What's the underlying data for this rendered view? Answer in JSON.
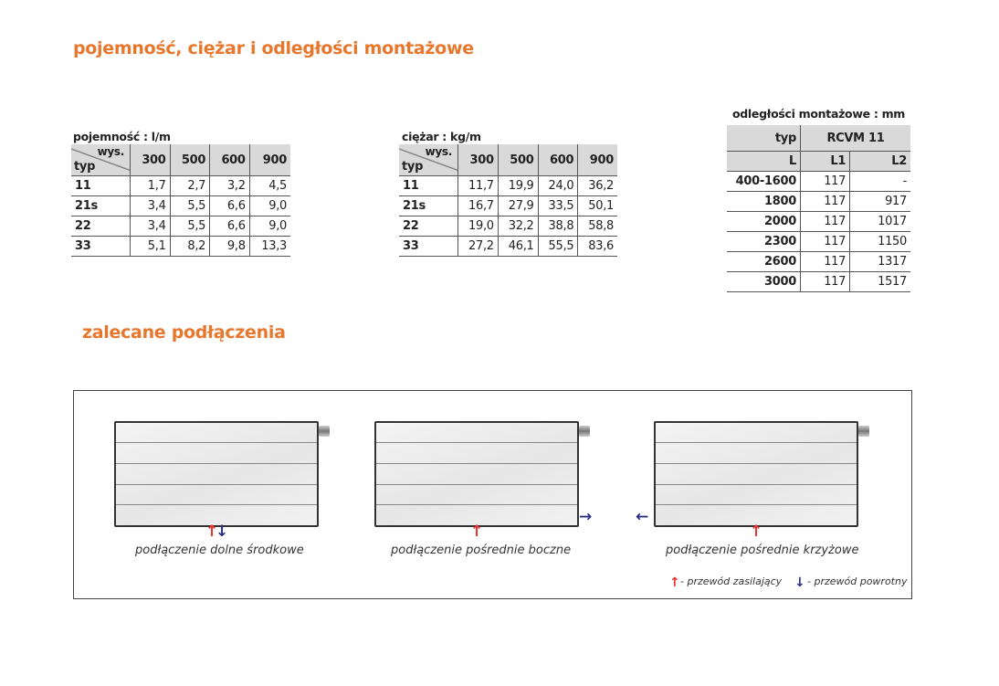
{
  "title1": "pojemność, ciężar i odległości montażowe",
  "title2": "zalecane podłączenia",
  "capacity": {
    "caption": "pojemność : l/m",
    "corner_top": "wys.",
    "corner_bottom": "typ",
    "cols": [
      "300",
      "500",
      "600",
      "900"
    ],
    "rows": [
      [
        "11",
        "1,7",
        "2,7",
        "3,2",
        "4,5"
      ],
      [
        "21s",
        "3,4",
        "5,5",
        "6,6",
        "9,0"
      ],
      [
        "22",
        "3,4",
        "5,5",
        "6,6",
        "9,0"
      ],
      [
        "33",
        "5,1",
        "8,2",
        "9,8",
        "13,3"
      ]
    ]
  },
  "weight": {
    "caption": "ciężar : kg/m",
    "corner_top": "wys.",
    "corner_bottom": "typ",
    "cols": [
      "300",
      "500",
      "600",
      "900"
    ],
    "rows": [
      [
        "11",
        "11,7",
        "19,9",
        "24,0",
        "36,2"
      ],
      [
        "21s",
        "16,7",
        "27,9",
        "33,5",
        "50,1"
      ],
      [
        "22",
        "19,0",
        "32,2",
        "38,8",
        "58,8"
      ],
      [
        "33",
        "27,2",
        "46,1",
        "55,5",
        "83,6"
      ]
    ]
  },
  "mounting": {
    "caption": "odległości montażowe : mm",
    "h_typ": "typ",
    "h_model": "RCVM 11",
    "cols": [
      "L",
      "L1",
      "L2"
    ],
    "rows": [
      [
        "400-1600",
        "117",
        "-"
      ],
      [
        "1800",
        "117",
        "917"
      ],
      [
        "2000",
        "117",
        "1017"
      ],
      [
        "2300",
        "117",
        "1150"
      ],
      [
        "2600",
        "117",
        "1317"
      ],
      [
        "3000",
        "117",
        "1517"
      ]
    ]
  },
  "connections": [
    {
      "label": "podłączenie dolne środkowe"
    },
    {
      "label": "podłączenie pośrednie boczne"
    },
    {
      "label": "podłączenie pośrednie krzyżowe"
    }
  ],
  "legend": {
    "supply": "- przewód zasilający",
    "return": "- przewód powrotny",
    "supply_color": "#e8322e",
    "return_color": "#2a2f8a"
  },
  "accent": "#e8772e"
}
